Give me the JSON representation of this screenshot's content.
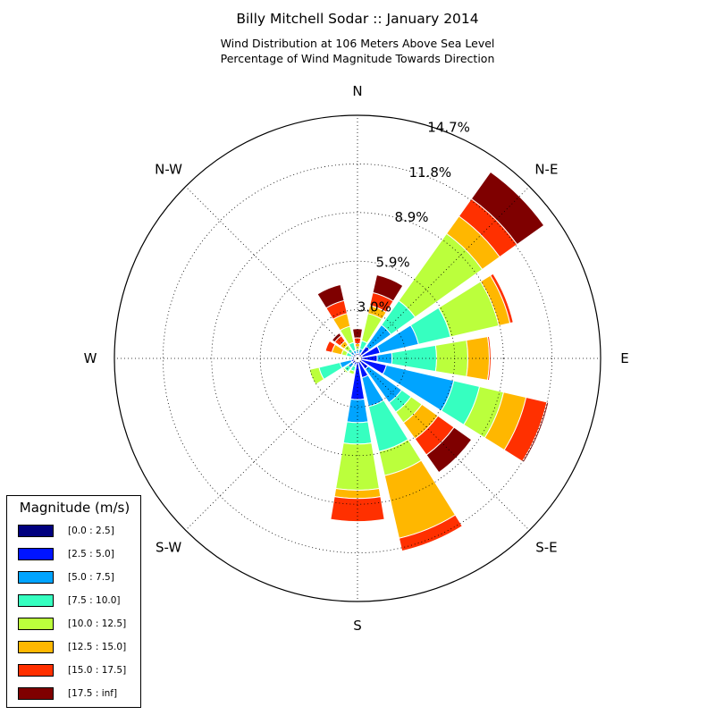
{
  "title": "Billy Mitchell Sodar :: January 2014",
  "subtitle_line1": "Wind Distribution at 106 Meters Above Sea Level",
  "subtitle_line2": "Percentage of Wind Magnitude Towards Direction",
  "chart_data": {
    "type": "windrose",
    "title": "Billy Mitchell Sodar :: January 2014",
    "subtitle": [
      "Wind Distribution at 106 Meters Above Sea Level",
      "Percentage of Wind Magnitude Towards Direction"
    ],
    "direction_labels": [
      "N",
      "N-E",
      "E",
      "S-E",
      "S",
      "S-W",
      "W",
      "N-W"
    ],
    "ring_labels": [
      "3.0%",
      "5.9%",
      "8.9%",
      "11.8%",
      "14.7%"
    ],
    "ring_values": [
      2.95,
      5.9,
      8.85,
      11.8,
      14.75
    ],
    "rmax": 14.75,
    "sector_directions_deg": [
      0,
      22.5,
      45,
      67.5,
      90,
      112.5,
      135,
      157.5,
      180,
      202.5,
      225,
      247.5,
      270,
      292.5,
      315,
      337.5
    ],
    "legend_title": "Magnitude (m/s)",
    "legend_placement": "bottom-left",
    "bins": [
      {
        "name": "[0.0 : 2.5]",
        "color": "#00007f"
      },
      {
        "name": "[2.5 : 5.0]",
        "color": "#0014ff"
      },
      {
        "name": "[5.0 : 7.5]",
        "color": "#00a4ff"
      },
      {
        "name": "[7.5 : 10.0]",
        "color": "#36ffc0"
      },
      {
        "name": "[10.0 : 12.5]",
        "color": "#bbff3c"
      },
      {
        "name": "[12.5 : 15.0]",
        "color": "#ffb700"
      },
      {
        "name": "[15.0 : 17.5]",
        "color": "#ff3000"
      },
      {
        "name": "[17.5 : inf]",
        "color": "#7f0000"
      }
    ],
    "cumulative_percent_by_direction": [
      [
        0.15,
        0.3,
        0.45,
        0.55,
        0.7,
        0.9,
        1.25,
        1.8
      ],
      [
        0.2,
        0.35,
        0.6,
        1.1,
        2.8,
        3.3,
        4.1,
        5.2
      ],
      [
        0.3,
        0.9,
        2.5,
        4.3,
        9.3,
        10.6,
        11.9,
        13.9
      ],
      [
        0.3,
        1.4,
        3.8,
        5.8,
        8.8,
        9.5,
        9.7,
        9.7
      ],
      [
        0.2,
        1.2,
        2.1,
        4.8,
        6.7,
        8.0,
        8.1,
        8.1
      ],
      [
        0.2,
        1.8,
        6.0,
        7.6,
        9.1,
        10.5,
        11.8,
        11.9
      ],
      [
        0.2,
        0.8,
        3.3,
        4.0,
        4.8,
        6.0,
        7.2,
        8.5
      ],
      [
        0.2,
        1.2,
        3.0,
        5.8,
        7.3,
        11.2,
        12.0,
        12.0
      ],
      [
        0.2,
        2.5,
        3.9,
        5.2,
        8.0,
        8.5,
        9.9,
        9.9
      ],
      [
        0.2,
        0.4,
        0.5,
        0.8,
        1.0,
        1.0,
        1.0,
        1.0
      ],
      [
        0.2,
        0.4,
        0.7,
        1.0,
        1.1,
        1.1,
        1.1,
        1.1
      ],
      [
        0.2,
        0.4,
        1.1,
        2.4,
        3.0,
        3.0,
        3.0,
        3.0
      ],
      [
        0.2,
        0.3,
        0.4,
        0.4,
        0.4,
        0.4,
        0.4,
        0.4
      ],
      [
        0.1,
        0.3,
        0.4,
        0.7,
        1.0,
        1.6,
        2.0,
        2.0
      ],
      [
        0.15,
        0.3,
        0.5,
        0.7,
        1.0,
        1.3,
        1.7,
        1.9
      ],
      [
        0.15,
        0.3,
        0.5,
        1.0,
        2.0,
        2.8,
        3.6,
        4.6
      ]
    ]
  }
}
